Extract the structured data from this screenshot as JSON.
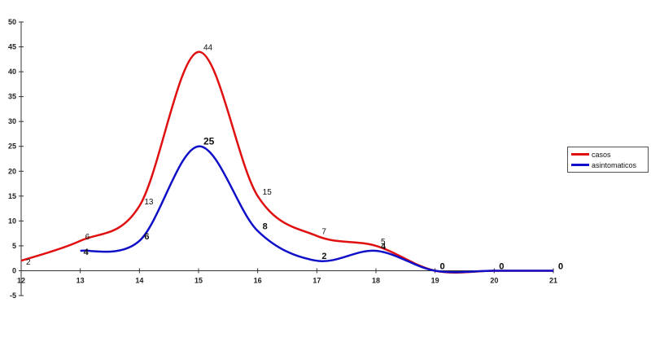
{
  "chart_data": {
    "type": "line",
    "title": "",
    "xlabel": "",
    "ylabel": "",
    "x": [
      12,
      13,
      14,
      15,
      16,
      17,
      18,
      19,
      20,
      21
    ],
    "x_ticks": [
      "12",
      "13",
      "14",
      "15",
      "16",
      "17",
      "18",
      "19",
      "20",
      "21"
    ],
    "y_ticks": [
      "-5",
      "0",
      "5",
      "10",
      "15",
      "20",
      "25",
      "30",
      "35",
      "40",
      "45",
      "50"
    ],
    "xlim": [
      12,
      21
    ],
    "ylim": [
      -5,
      50
    ],
    "grid": false,
    "legend": "right",
    "series": [
      {
        "name": "casos",
        "color": "#e01010",
        "values": [
          2,
          6,
          13,
          44,
          15,
          7,
          5,
          0,
          0,
          0
        ],
        "labels": [
          "2",
          "6",
          "13",
          "44",
          "15",
          "7",
          "5",
          "0",
          "0",
          "0"
        ]
      },
      {
        "name": "asintomaticos",
        "color": "#1010c8",
        "values": [
          null,
          4,
          6,
          25,
          8,
          2,
          4,
          0,
          0,
          0
        ],
        "labels": [
          "",
          "4",
          "6",
          "25",
          "8",
          "2",
          "4",
          "0",
          "0",
          "0"
        ]
      }
    ]
  }
}
